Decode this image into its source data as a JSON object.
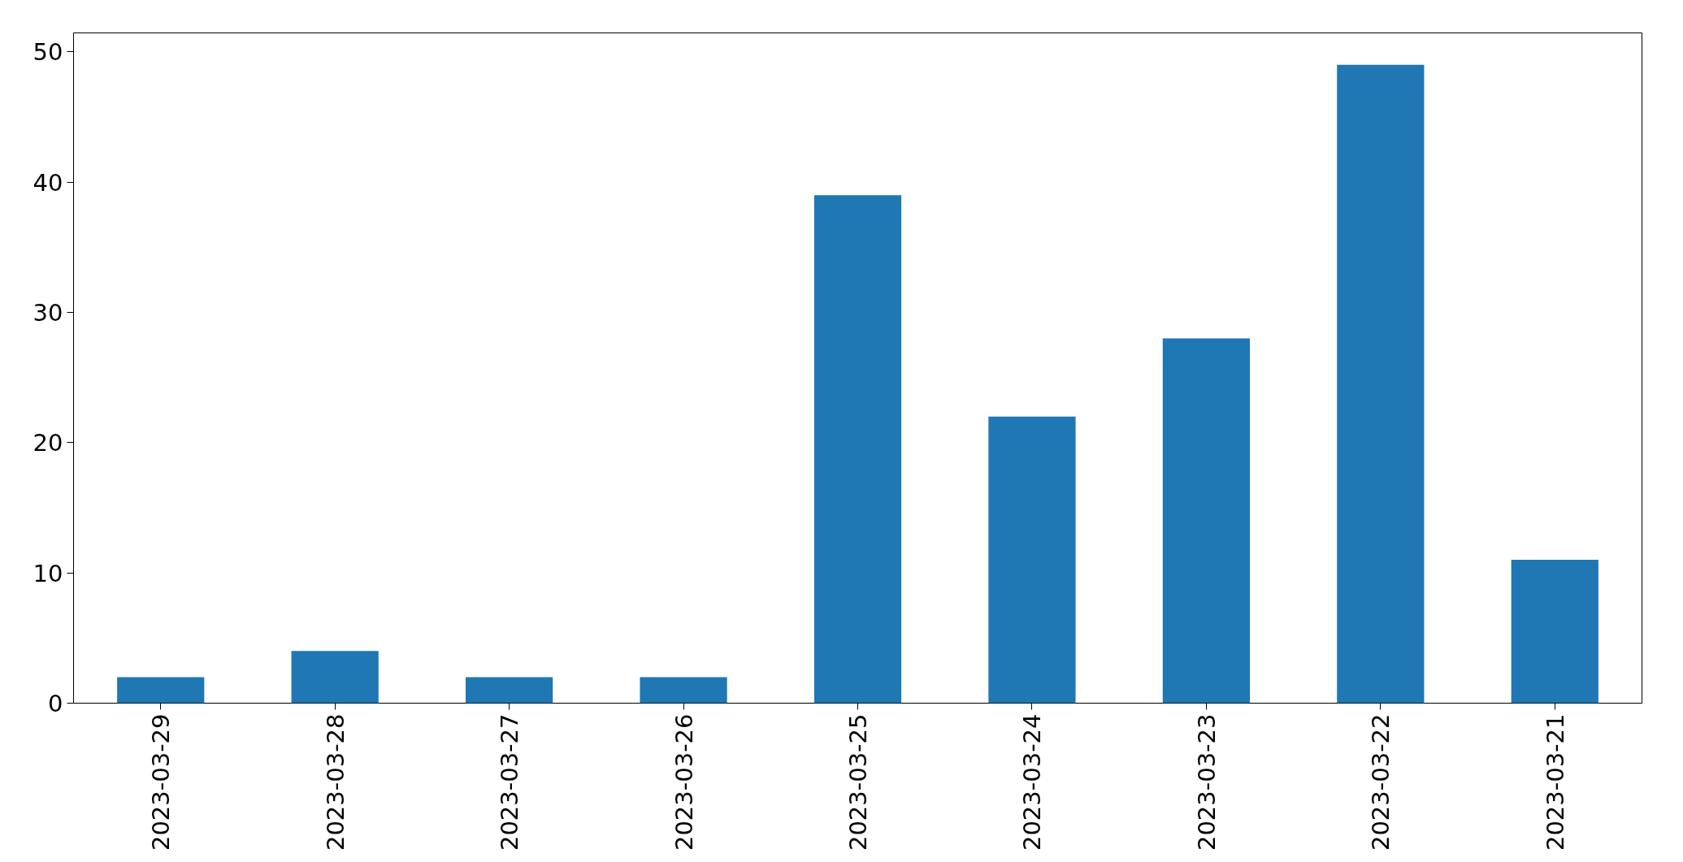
{
  "chart_data": {
    "type": "bar",
    "categories": [
      "2023-03-29",
      "2023-03-28",
      "2023-03-27",
      "2023-03-26",
      "2023-03-25",
      "2023-03-24",
      "2023-03-23",
      "2023-03-22",
      "2023-03-21"
    ],
    "values": [
      2,
      4,
      2,
      2,
      39,
      22,
      28,
      49,
      11
    ],
    "color": "#1f77b4",
    "ylim": [
      0,
      51.45
    ],
    "yticks": [
      0,
      10,
      20,
      30,
      40,
      50
    ],
    "grid": false
  }
}
